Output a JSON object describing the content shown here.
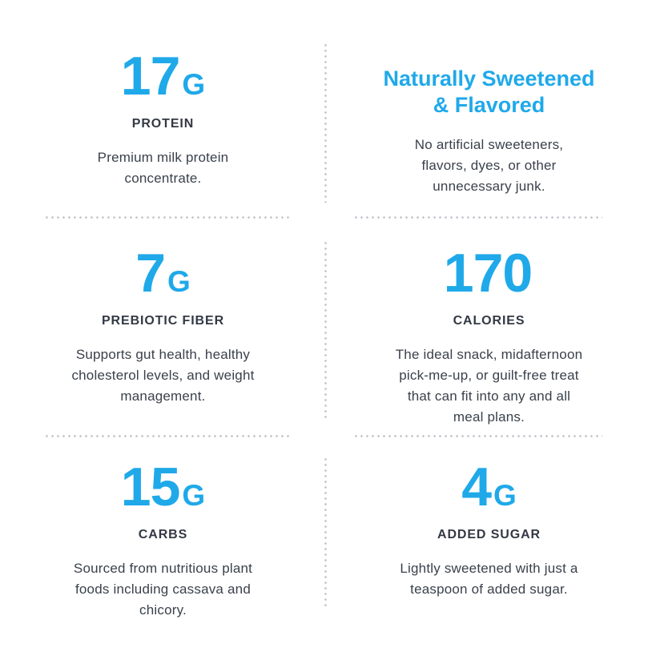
{
  "colors": {
    "accent_blue": "#1FA9E9",
    "label_text": "#333944",
    "body_text": "#3A414C",
    "divider_dot": "#BFC5CB",
    "background": "#FFFFFF"
  },
  "cells": [
    {
      "id": "protein",
      "value": "17",
      "unit": "G",
      "label": "PROTEIN",
      "description_lines": [
        "Premium milk protein",
        "concentrate."
      ]
    },
    {
      "id": "naturally-sweetened",
      "heading_lines": [
        "Naturally Sweetened",
        "& Flavored"
      ],
      "description_lines": [
        "No artificial sweeteners,",
        "flavors, dyes, or other",
        "unnecessary junk."
      ]
    },
    {
      "id": "prebiotic-fiber",
      "value": "7",
      "unit": "G",
      "label": "PREBIOTIC FIBER",
      "description_lines": [
        "Supports gut health, healthy",
        "cholesterol levels, and weight",
        "management."
      ]
    },
    {
      "id": "calories",
      "value": "170",
      "unit": "",
      "label": "CALORIES",
      "description_lines": [
        "The ideal snack, midafternoon",
        "pick-me-up, or guilt-free treat",
        "that can fit into any and all",
        "meal plans."
      ]
    },
    {
      "id": "carbs",
      "value": "15",
      "unit": "G",
      "label": "CARBS",
      "description_lines": [
        "Sourced from nutritious plant",
        "foods including cassava and",
        "chicory."
      ]
    },
    {
      "id": "added-sugar",
      "value": "4",
      "unit": "G",
      "label": "ADDED SUGAR",
      "description_lines": [
        "Lightly sweetened with just a",
        "teaspoon of added sugar."
      ]
    }
  ]
}
